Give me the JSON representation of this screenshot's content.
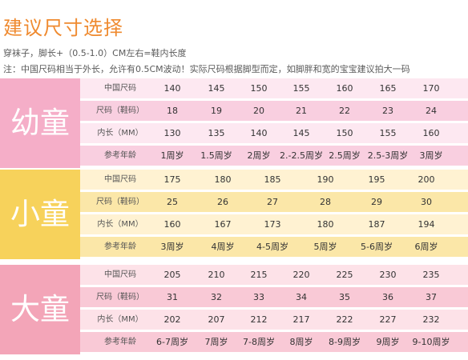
{
  "title": "建议尺寸选择",
  "notes": [
    "穿袜子，脚长+（0.5-1.0）CM左右=鞋内长度",
    "注：中国尺码相当于外长，允许有0.5CM波动！实际尺码根据脚型而定，如脚胖和宽的宝宝建议拍大一码"
  ],
  "colors": {
    "title": "#ef8a2f",
    "toddler_band": "#f5aec8",
    "toddler_row_light": "#fde8f1",
    "toddler_row_dark": "#f9cfe0",
    "child_band": "#f7d25b",
    "child_row_light": "#fff2d2",
    "child_row_dark": "#fbe7a8",
    "big_band": "#f3a5b8",
    "big_row_light": "#fde2e8",
    "big_row_dark": "#f9c9d6"
  },
  "tables": [
    {
      "group": "幼童",
      "rows": [
        {
          "label": "中国尺码",
          "values": [
            "140",
            "145",
            "150",
            "155",
            "160",
            "165",
            "170"
          ]
        },
        {
          "label": "尺码（鞋码）",
          "values": [
            "18",
            "19",
            "20",
            "21",
            "22",
            "23",
            "24"
          ]
        },
        {
          "label": "内长（MM）",
          "values": [
            "130",
            "135",
            "140",
            "145",
            "150",
            "155",
            "160"
          ]
        },
        {
          "label": "参考年龄",
          "values": [
            "1周岁",
            "1.5周岁",
            "2周岁",
            "2.-2.5周岁",
            "2.5周岁",
            "2.5-3周岁",
            "3周岁"
          ]
        }
      ]
    },
    {
      "group": "小童",
      "rows": [
        {
          "label": "中国尺码",
          "values": [
            "175",
            "180",
            "185",
            "190",
            "195",
            "200"
          ]
        },
        {
          "label": "尺码（鞋码）",
          "values": [
            "25",
            "26",
            "27",
            "28",
            "29",
            "30"
          ]
        },
        {
          "label": "内长（MM）",
          "values": [
            "160",
            "167",
            "173",
            "180",
            "187",
            "194"
          ]
        },
        {
          "label": "参考年龄",
          "values": [
            "3周岁",
            "4周岁",
            "4-5周岁",
            "5周岁",
            "5-6周岁",
            "6周岁"
          ]
        }
      ]
    },
    {
      "group": "大童",
      "rows": [
        {
          "label": "中国尺码",
          "values": [
            "205",
            "210",
            "215",
            "220",
            "225",
            "230",
            "235"
          ]
        },
        {
          "label": "尺码（鞋码）",
          "values": [
            "31",
            "32",
            "33",
            "34",
            "35",
            "36",
            "37"
          ]
        },
        {
          "label": "内长（MM）",
          "values": [
            "202",
            "207",
            "212",
            "217",
            "222",
            "227",
            "232"
          ]
        },
        {
          "label": "参考年龄",
          "values": [
            "6-7周岁",
            "7周岁",
            "7-8周岁",
            "8周岁",
            "8-9周岁",
            "9周岁",
            "9-10周岁"
          ]
        }
      ]
    }
  ]
}
